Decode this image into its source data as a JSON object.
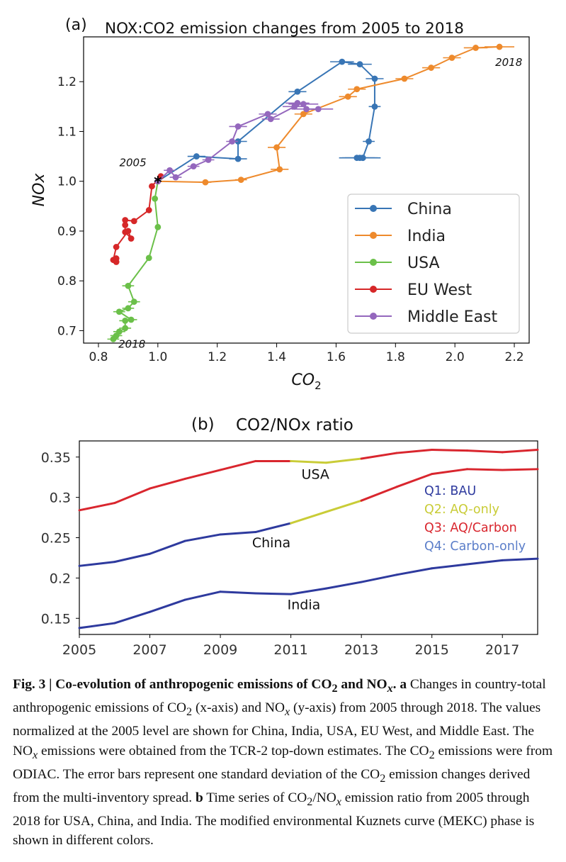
{
  "chart_data": [
    {
      "panel": "(a)",
      "type": "line",
      "title": "NOX:CO2 emission changes from 2005 to 2018",
      "xlabel": "CO2",
      "ylabel": "NOx",
      "xlim": [
        0.75,
        2.25
      ],
      "ylim": [
        0.675,
        1.29
      ],
      "xticks": [
        0.8,
        1.0,
        1.2,
        1.4,
        1.6,
        1.8,
        2.0,
        2.2
      ],
      "yticks": [
        0.7,
        0.8,
        0.9,
        1.0,
        1.1,
        1.2
      ],
      "xtick_labels": [
        "0.8",
        "1.0",
        "1.2",
        "1.4",
        "1.6",
        "1.8",
        "2.0",
        "2.2"
      ],
      "ytick_labels": [
        "0.7",
        "0.8",
        "0.9",
        "1.0",
        "1.1",
        "1.2"
      ],
      "annotations": [
        {
          "text": "2005",
          "x": 0.98,
          "y": 1.0
        },
        {
          "text": "2018",
          "x": 2.15,
          "y": 1.27
        },
        {
          "text": "2018",
          "x": 0.86,
          "y": 0.683
        }
      ],
      "grid": false,
      "legend": "lower-right",
      "series": [
        {
          "name": "China",
          "color": "#3875b5",
          "x": [
            1.0,
            1.13,
            1.27,
            1.27,
            1.47,
            1.62,
            1.68,
            1.73,
            1.73,
            1.71,
            1.69,
            1.67,
            1.68,
            1.69
          ],
          "y": [
            1.0,
            1.05,
            1.045,
            1.08,
            1.18,
            1.24,
            1.235,
            1.206,
            1.15,
            1.08,
            1.047,
            1.047,
            1.047,
            1.047
          ],
          "xerr": [
            0,
            0.03,
            0.03,
            0.03,
            0.03,
            0.04,
            0.04,
            0.03,
            0.02,
            0.02,
            0.02,
            0.06,
            0.06,
            0.06
          ]
        },
        {
          "name": "India",
          "color": "#ee8a2c",
          "x": [
            1.0,
            1.16,
            1.28,
            1.41,
            1.4,
            1.49,
            1.64,
            1.67,
            1.83,
            1.92,
            1.99,
            2.07,
            2.15
          ],
          "y": [
            1.0,
            0.998,
            1.003,
            1.024,
            1.068,
            1.135,
            1.17,
            1.185,
            1.206,
            1.228,
            1.248,
            1.268,
            1.27
          ],
          "xerr": [
            0,
            0.02,
            0.02,
            0.03,
            0.03,
            0.03,
            0.03,
            0.03,
            0.03,
            0.03,
            0.03,
            0.04,
            0.05
          ]
        },
        {
          "name": "USA",
          "color": "#6bc049",
          "x": [
            1.0,
            0.99,
            1.0,
            0.97,
            0.9,
            0.92,
            0.9,
            0.87,
            0.91,
            0.89,
            0.89,
            0.87,
            0.86,
            0.85
          ],
          "y": [
            1.0,
            0.965,
            0.908,
            0.846,
            0.79,
            0.758,
            0.745,
            0.738,
            0.722,
            0.72,
            0.705,
            0.698,
            0.69,
            0.683
          ],
          "xerr": [
            0,
            0.01,
            0.01,
            0.01,
            0.02,
            0.02,
            0.02,
            0.02,
            0.02,
            0.02,
            0.02,
            0.02,
            0.02,
            0.02
          ]
        },
        {
          "name": "EU West",
          "color": "#d62728",
          "x": [
            1.0,
            1.01,
            0.98,
            0.97,
            0.92,
            0.89,
            0.89,
            0.89,
            0.91,
            0.9,
            0.86,
            0.85,
            0.86,
            0.86
          ],
          "y": [
            1.0,
            1.01,
            0.99,
            0.942,
            0.92,
            0.922,
            0.912,
            0.898,
            0.885,
            0.9,
            0.868,
            0.842,
            0.838,
            0.845
          ],
          "xerr": [
            0,
            0.01,
            0.01,
            0.01,
            0.01,
            0.01,
            0.01,
            0.01,
            0.01,
            0.01,
            0.01,
            0.01,
            0.01,
            0.01
          ]
        },
        {
          "name": "Middle East",
          "color": "#9467bd",
          "x": [
            1.0,
            1.04,
            1.06,
            1.12,
            1.17,
            1.25,
            1.27,
            1.37,
            1.38,
            1.46,
            1.47,
            1.49,
            1.5,
            1.54
          ],
          "y": [
            1.0,
            1.022,
            1.008,
            1.03,
            1.043,
            1.08,
            1.11,
            1.135,
            1.125,
            1.15,
            1.157,
            1.155,
            1.145,
            1.145
          ],
          "xerr": [
            0,
            0.02,
            0.02,
            0.02,
            0.02,
            0.02,
            0.03,
            0.03,
            0.03,
            0.04,
            0.04,
            0.05,
            0.05,
            0.05
          ]
        }
      ]
    },
    {
      "panel": "(b)",
      "type": "line",
      "title": "CO2/NOx ratio",
      "xlabel": "",
      "ylabel": "",
      "xlim": [
        2005,
        2018
      ],
      "ylim": [
        0.13,
        0.37
      ],
      "xticks": [
        2005,
        2007,
        2009,
        2011,
        2013,
        2015,
        2017
      ],
      "yticks": [
        0.15,
        0.2,
        0.25,
        0.3,
        0.35
      ],
      "xtick_labels": [
        "2005",
        "2007",
        "2009",
        "2011",
        "2013",
        "2015",
        "2017"
      ],
      "ytick_labels": [
        "0.15",
        "0.2",
        "0.25",
        "0.3",
        "0.35"
      ],
      "grid": false,
      "phase_colors": {
        "Q1": "#2e3a9e",
        "Q2": "#c9cc37",
        "Q3": "#d9262e",
        "Q4": "#5b7ec9"
      },
      "legend": [
        {
          "text": "Q1: BAU",
          "color": "#2e3a9e"
        },
        {
          "text": "Q2: AQ-only",
          "color": "#c9cc37"
        },
        {
          "text": "Q3: AQ/Carbon",
          "color": "#d9262e"
        },
        {
          "text": "Q4: Carbon-only",
          "color": "#5b7ec9"
        }
      ],
      "x": [
        2005,
        2006,
        2007,
        2008,
        2009,
        2010,
        2011,
        2012,
        2013,
        2014,
        2015,
        2016,
        2017,
        2018
      ],
      "series": [
        {
          "name": "USA",
          "values": [
            0.284,
            0.293,
            0.311,
            0.323,
            0.334,
            0.345,
            0.345,
            0.343,
            0.348,
            0.355,
            0.359,
            0.358,
            0.356,
            0.359
          ],
          "phase": [
            "Q3",
            "Q3",
            "Q3",
            "Q3",
            "Q3",
            "Q3",
            "Q3",
            "Q2",
            "Q2",
            "Q3",
            "Q3",
            "Q3",
            "Q3",
            "Q3"
          ]
        },
        {
          "name": "China",
          "values": [
            0.215,
            0.22,
            0.23,
            0.246,
            0.254,
            0.257,
            0.268,
            0.282,
            0.296,
            0.313,
            0.329,
            0.335,
            0.334,
            0.335
          ],
          "phase": [
            "Q1",
            "Q1",
            "Q1",
            "Q1",
            "Q1",
            "Q1",
            "Q1",
            "Q2",
            "Q2",
            "Q3",
            "Q3",
            "Q3",
            "Q3",
            "Q3"
          ]
        },
        {
          "name": "India",
          "values": [
            0.138,
            0.144,
            0.158,
            0.173,
            0.183,
            0.181,
            0.18,
            0.187,
            0.195,
            0.204,
            0.212,
            0.217,
            0.222,
            0.224
          ],
          "phase": [
            "Q1",
            "Q1",
            "Q1",
            "Q1",
            "Q1",
            "Q1",
            "Q1",
            "Q1",
            "Q1",
            "Q1",
            "Q1",
            "Q1",
            "Q1",
            "Q1"
          ]
        }
      ],
      "labels": [
        {
          "text": "USA",
          "x": 2011.3,
          "y": 0.323
        },
        {
          "text": "China",
          "x": 2009.9,
          "y": 0.238
        },
        {
          "text": "India",
          "x": 2010.9,
          "y": 0.161
        }
      ]
    }
  ],
  "caption": {
    "fig_label": "Fig. 3 | Co-evolution of anthropogenic emissions of CO",
    "fig_label_sub2": "2",
    "fig_label_and": " and NO",
    "fig_label_subx": "x",
    "fig_label_end": ".",
    "a_label": " a",
    "a_text1": " Changes in country-total anthropogenic emissions of CO",
    "a_sub2": "2",
    "a_text2": " (x-axis) and NO",
    "a_subx": "x",
    "a_text3": " (y-axis) from 2005 through 2018. The values normalized at the 2005 level are shown for China, India, USA, EU West, and Middle East. The NO",
    "a_subx2": "x",
    "a_text4": " emissions were obtained from the TCR-2 top-down estimates. The CO",
    "a_sub2b": "2",
    "a_text5": " emissions were from ODIAC. The error bars represent one standard deviation of the CO",
    "a_sub2c": "2",
    "a_text6": " emission changes derived from the multi-inventory spread.",
    "b_label": " b",
    "b_text1": " Time series of CO",
    "b_sub2": "2",
    "b_text2": "/NO",
    "b_subx": "x",
    "b_text3": " emission ratio from 2005 through 2018 for USA, China, and India. The modified environmental Kuznets curve (MEKC) phase is shown in different colors."
  }
}
